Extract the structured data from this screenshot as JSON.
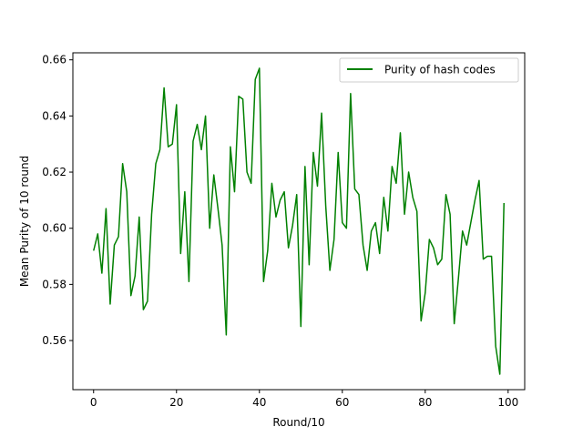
{
  "chart_data": {
    "type": "line",
    "title": "",
    "xlabel": "Round/10",
    "ylabel": "Mean Purity of 10 round",
    "xlim": [
      -5,
      104
    ],
    "ylim": [
      0.5425,
      0.6625
    ],
    "xticks": [
      0,
      20,
      40,
      60,
      80,
      100
    ],
    "yticks": [
      0.56,
      0.58,
      0.6,
      0.62,
      0.64,
      0.66
    ],
    "ytick_labels": [
      "0.56",
      "0.58",
      "0.60",
      "0.62",
      "0.64",
      "0.66"
    ],
    "grid": false,
    "legend_position": "top-right",
    "series": [
      {
        "name": "Purity of hash codes",
        "color": "#008000",
        "x": [
          0,
          1,
          2,
          3,
          4,
          5,
          6,
          7,
          8,
          9,
          10,
          11,
          12,
          13,
          14,
          15,
          16,
          17,
          18,
          19,
          20,
          21,
          22,
          23,
          24,
          25,
          26,
          27,
          28,
          29,
          30,
          31,
          32,
          33,
          34,
          35,
          36,
          37,
          38,
          39,
          40,
          41,
          42,
          43,
          44,
          45,
          46,
          47,
          48,
          49,
          50,
          51,
          52,
          53,
          54,
          55,
          56,
          57,
          58,
          59,
          60,
          61,
          62,
          63,
          64,
          65,
          66,
          67,
          68,
          69,
          70,
          71,
          72,
          73,
          74,
          75,
          76,
          77,
          78,
          79,
          80,
          81,
          82,
          83,
          84,
          85,
          86,
          87,
          88,
          89,
          90,
          91,
          92,
          93,
          94,
          95,
          96,
          97,
          98,
          99
        ],
        "values": [
          0.592,
          0.598,
          0.584,
          0.607,
          0.573,
          0.594,
          0.597,
          0.623,
          0.613,
          0.576,
          0.583,
          0.604,
          0.571,
          0.574,
          0.605,
          0.623,
          0.628,
          0.65,
          0.629,
          0.63,
          0.644,
          0.591,
          0.613,
          0.581,
          0.631,
          0.637,
          0.628,
          0.64,
          0.6,
          0.619,
          0.607,
          0.594,
          0.562,
          0.629,
          0.613,
          0.647,
          0.646,
          0.62,
          0.616,
          0.653,
          0.657,
          0.581,
          0.592,
          0.616,
          0.604,
          0.61,
          0.613,
          0.593,
          0.601,
          0.612,
          0.565,
          0.622,
          0.587,
          0.627,
          0.615,
          0.641,
          0.608,
          0.585,
          0.596,
          0.627,
          0.602,
          0.6,
          0.648,
          0.614,
          0.612,
          0.594,
          0.585,
          0.599,
          0.602,
          0.591,
          0.611,
          0.599,
          0.622,
          0.616,
          0.634,
          0.605,
          0.62,
          0.611,
          0.606,
          0.567,
          0.577,
          0.596,
          0.593,
          0.587,
          0.589,
          0.612,
          0.605,
          0.566,
          0.582,
          0.599,
          0.594,
          0.602,
          0.61,
          0.617,
          0.589,
          0.59,
          0.59,
          0.558,
          0.548,
          0.609
        ]
      }
    ]
  }
}
